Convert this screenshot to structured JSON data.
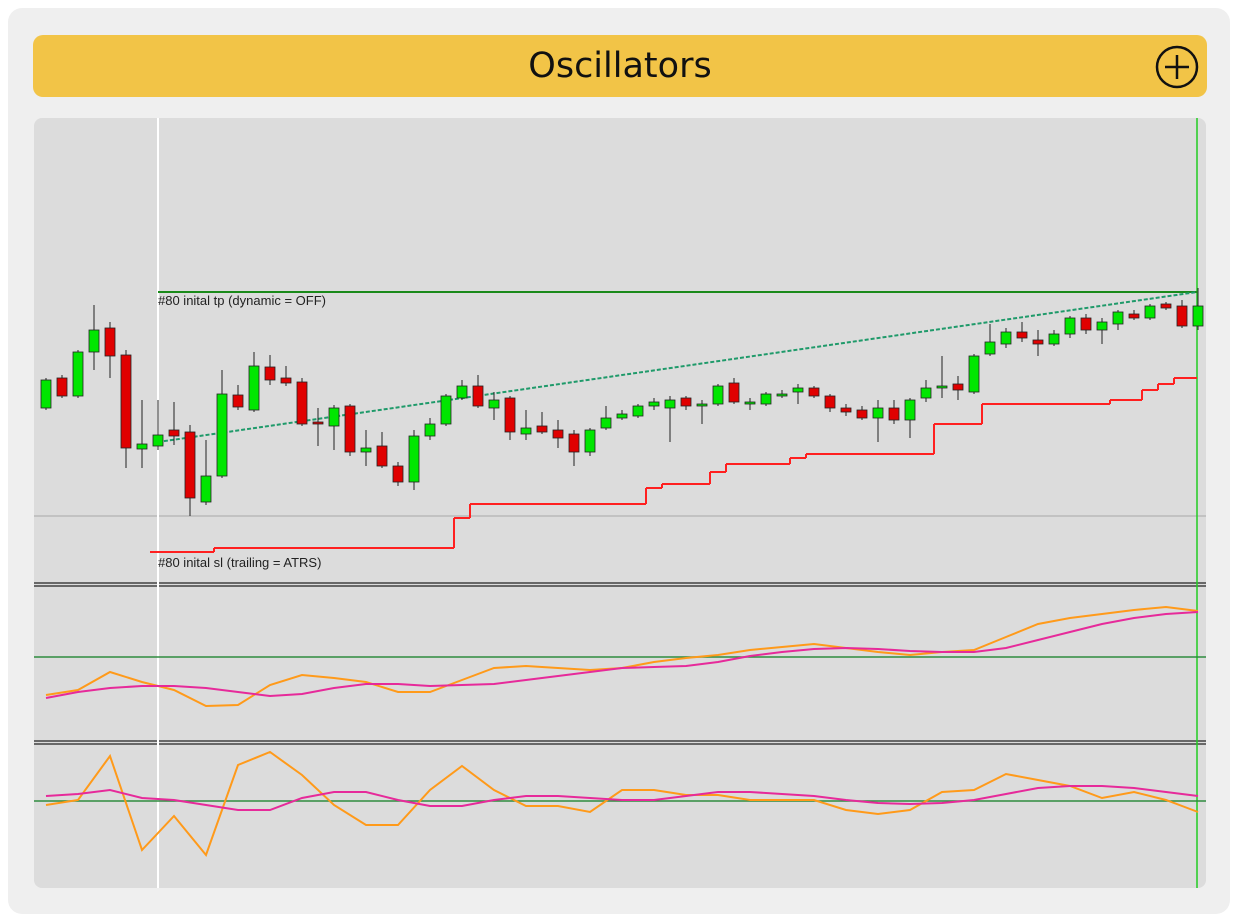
{
  "header": {
    "title": "Oscillators"
  },
  "chart_data": [
    {
      "type": "candlestick",
      "ylim": [
        0,
        464
      ],
      "up_color": "#00e600",
      "down_color": "#e00000",
      "open": [
        174,
        204,
        186,
        230,
        254,
        227,
        133,
        136,
        152,
        150,
        80,
        106,
        187,
        172,
        215,
        204,
        200,
        160,
        156,
        176,
        130,
        136,
        116,
        100,
        146,
        158,
        184,
        196,
        174,
        184,
        148,
        156,
        152,
        148,
        130,
        154,
        164,
        166,
        176,
        174,
        184,
        176,
        178,
        199,
        178,
        178,
        186,
        190,
        194,
        186,
        174,
        172,
        164,
        174,
        162,
        184,
        194,
        198,
        190,
        228,
        238,
        250,
        242,
        238,
        248,
        264,
        252,
        258,
        268,
        264,
        278,
        276,
        256
      ],
      "high": [
        204,
        207,
        232,
        277,
        260,
        232,
        182,
        182,
        180,
        157,
        142,
        212,
        197,
        230,
        227,
        216,
        204,
        174,
        177,
        178,
        152,
        150,
        120,
        152,
        164,
        188,
        202,
        207,
        190,
        186,
        172,
        170,
        162,
        152,
        154,
        176,
        172,
        178,
        184,
        186,
        186,
        182,
        198,
        204,
        184,
        190,
        192,
        198,
        196,
        188,
        178,
        176,
        182,
        182,
        184,
        202,
        226,
        206,
        228,
        258,
        254,
        260,
        252,
        252,
        266,
        268,
        264,
        272,
        272,
        278,
        280,
        282,
        294
      ],
      "low": [
        172,
        184,
        184,
        212,
        204,
        114,
        114,
        132,
        137,
        66,
        77,
        104,
        172,
        170,
        197,
        196,
        156,
        136,
        132,
        126,
        116,
        114,
        96,
        92,
        142,
        156,
        182,
        174,
        162,
        142,
        142,
        148,
        134,
        116,
        126,
        152,
        162,
        164,
        172,
        140,
        172,
        158,
        176,
        178,
        172,
        176,
        184,
        178,
        184,
        170,
        166,
        162,
        140,
        158,
        144,
        180,
        184,
        182,
        188,
        226,
        234,
        240,
        226,
        236,
        244,
        248,
        238,
        252,
        262,
        262,
        272,
        254,
        252
      ],
      "close": [
        202,
        186,
        230,
        252,
        226,
        134,
        138,
        147,
        146,
        84,
        106,
        188,
        175,
        216,
        202,
        199,
        158,
        158,
        174,
        130,
        134,
        116,
        100,
        146,
        158,
        186,
        196,
        176,
        182,
        150,
        154,
        150,
        144,
        130,
        152,
        164,
        168,
        176,
        180,
        182,
        176,
        178,
        196,
        180,
        180,
        188,
        188,
        194,
        186,
        174,
        170,
        164,
        174,
        162,
        182,
        194,
        196,
        192,
        226,
        240,
        250,
        244,
        238,
        248,
        264,
        252,
        260,
        270,
        264,
        276,
        274,
        256,
        276
      ],
      "tp": {
        "label": "#80 inital tp (dynamic = OFF)",
        "value": 290,
        "color": "#1a8a1a"
      },
      "trend": {
        "values": [
          140,
          290
        ],
        "color": "#1f9a6a"
      },
      "sl": {
        "label": "#80 inital sl (trailing = ATRS)",
        "color": "#ff2020",
        "values": [
          null,
          null,
          null,
          null,
          null,
          null,
          null,
          30,
          30,
          30,
          30,
          34,
          34,
          34,
          34,
          34,
          34,
          34,
          34,
          34,
          34,
          34,
          34,
          34,
          34,
          34,
          64,
          78,
          78,
          78,
          78,
          78,
          78,
          78,
          78,
          78,
          78,
          78,
          94,
          98,
          98,
          98,
          110,
          118,
          118,
          118,
          118,
          124,
          128,
          128,
          128,
          128,
          128,
          128,
          128,
          128,
          158,
          158,
          158,
          178,
          178,
          178,
          178,
          178,
          178,
          178,
          178,
          182,
          182,
          192,
          198,
          204,
          204
        ]
      }
    },
    {
      "type": "line",
      "ylim": [
        0,
        154
      ],
      "level": 83,
      "level_color": "#2e8b3e",
      "series": [
        {
          "color": "#ff9a1a",
          "values": [
            45,
            50,
            68,
            58,
            50,
            34,
            35,
            55,
            65,
            62,
            58,
            48,
            48,
            60,
            72,
            74,
            72,
            70,
            72,
            78,
            82,
            85,
            90,
            93,
            96,
            92,
            88,
            85,
            88,
            90,
            103,
            116,
            122,
            126,
            130,
            133,
            129
          ]
        },
        {
          "color": "#e62a9a",
          "values": [
            42,
            48,
            52,
            54,
            54,
            52,
            48,
            44,
            46,
            52,
            56,
            56,
            54,
            55,
            56,
            60,
            64,
            68,
            72,
            73,
            74,
            78,
            84,
            88,
            91,
            92,
            91,
            89,
            88,
            88,
            92,
            100,
            108,
            116,
            122,
            126,
            128
          ]
        }
      ]
    },
    {
      "type": "line",
      "ylim": [
        0,
        142
      ],
      "level": 85,
      "level_color": "#2e8b3e",
      "series": [
        {
          "color": "#ff9a1a",
          "values": [
            81,
            86,
            130,
            36,
            70,
            31,
            121,
            134,
            111,
            81,
            61,
            61,
            96,
            120,
            96,
            80,
            80,
            74,
            96,
            96,
            91,
            91,
            86,
            86,
            86,
            76,
            72,
            76,
            94,
            96,
            112,
            106,
            100,
            88,
            94,
            86,
            74
          ]
        },
        {
          "color": "#e62a9a",
          "values": [
            90,
            92,
            96,
            88,
            86,
            81,
            76,
            76,
            88,
            94,
            94,
            86,
            80,
            80,
            86,
            90,
            90,
            88,
            86,
            86,
            90,
            94,
            94,
            92,
            90,
            86,
            83,
            82,
            83,
            86,
            92,
            98,
            100,
            100,
            98,
            94,
            90
          ]
        }
      ]
    }
  ]
}
